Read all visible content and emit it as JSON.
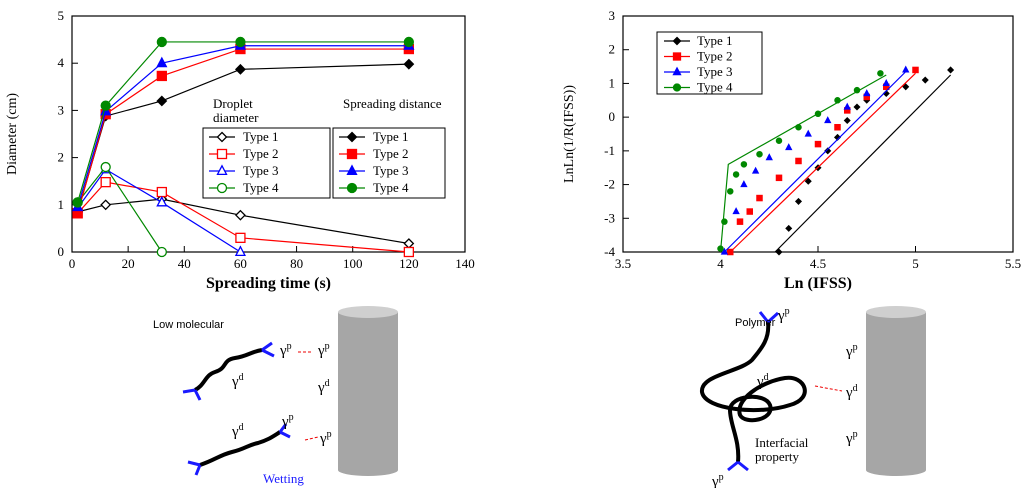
{
  "chart_data": [
    {
      "type": "line",
      "xlabel": "Spreading time (s)",
      "ylabel": "Diameter (cm)",
      "x": [
        2,
        12,
        32,
        60,
        120
      ],
      "xlim": [
        0,
        140
      ],
      "xticks": [
        0,
        20,
        40,
        60,
        80,
        100,
        120,
        140
      ],
      "ylim": [
        0,
        5
      ],
      "yticks": [
        0,
        1,
        2,
        3,
        4,
        5
      ],
      "legend_groups": [
        "Droplet diameter",
        "Spreading distance"
      ],
      "series": [
        {
          "name": "Type 1",
          "group": 0,
          "color": "#000000",
          "marker": "diamond",
          "filled": false,
          "values": [
            0.85,
            1.0,
            1.12,
            0.78,
            0.18
          ]
        },
        {
          "name": "Type 2",
          "group": 0,
          "color": "#ff0000",
          "marker": "square",
          "filled": false,
          "values": [
            0.82,
            1.48,
            1.27,
            0.3,
            0
          ]
        },
        {
          "name": "Type 3",
          "group": 0,
          "color": "#0000ff",
          "marker": "triangle",
          "filled": false,
          "values": [
            0.93,
            1.75,
            1.05,
            0,
            null
          ]
        },
        {
          "name": "Type 4",
          "group": 0,
          "color": "#008800",
          "marker": "circle",
          "filled": false,
          "values": [
            1.05,
            1.8,
            0,
            null,
            null
          ]
        },
        {
          "name": "Type 1",
          "group": 1,
          "color": "#000000",
          "marker": "diamond",
          "filled": true,
          "values": [
            0.85,
            2.88,
            3.2,
            3.87,
            3.98
          ]
        },
        {
          "name": "Type 2",
          "group": 1,
          "color": "#ff0000",
          "marker": "square",
          "filled": true,
          "values": [
            0.82,
            2.92,
            3.73,
            4.3,
            4.3
          ]
        },
        {
          "name": "Type 3",
          "group": 1,
          "color": "#0000ff",
          "marker": "triangle",
          "filled": true,
          "values": [
            0.95,
            2.98,
            4.0,
            4.37,
            4.37
          ]
        },
        {
          "name": "Type 4",
          "group": 1,
          "color": "#008800",
          "marker": "circle",
          "filled": true,
          "values": [
            1.05,
            3.1,
            4.45,
            4.45,
            4.45
          ]
        }
      ]
    },
    {
      "type": "scatter",
      "xlabel": "Ln (IFSS)",
      "ylabel": "LnLn(1/R(IFSS))",
      "xlim": [
        3.5,
        5.5
      ],
      "xticks": [
        3.5,
        4,
        4.5,
        5,
        5.5
      ],
      "ylim": [
        -4,
        3
      ],
      "yticks": [
        -4,
        -3,
        -2,
        -1,
        0,
        1,
        2,
        3
      ],
      "series": [
        {
          "name": "Type 1",
          "color": "#000000",
          "marker": "diamond",
          "x": [
            4.3,
            4.35,
            4.4,
            4.45,
            4.5,
            4.55,
            4.6,
            4.65,
            4.7,
            4.75,
            4.85,
            4.95,
            5.05,
            5.18
          ],
          "values": [
            -4,
            -3.3,
            -2.5,
            -1.9,
            -1.5,
            -1.0,
            -0.6,
            -0.1,
            0.3,
            0.5,
            0.7,
            0.9,
            1.1,
            1.4
          ],
          "fit": {
            "x": [
              4.28,
              5.18
            ],
            "values": [
              -4,
              1.25
            ]
          }
        },
        {
          "name": "Type 2",
          "color": "#ff0000",
          "marker": "square",
          "x": [
            4.05,
            4.1,
            4.15,
            4.2,
            4.3,
            4.4,
            4.5,
            4.6,
            4.65,
            4.75,
            4.85,
            5.0
          ],
          "values": [
            -4,
            -3.1,
            -2.8,
            -2.4,
            -1.8,
            -1.3,
            -0.8,
            -0.3,
            0.2,
            0.6,
            0.9,
            1.4
          ],
          "fit": {
            "x": [
              4.05,
              5.0
            ],
            "values": [
              -4,
              1.3
            ]
          }
        },
        {
          "name": "Type 3",
          "color": "#0000ff",
          "marker": "triangle",
          "x": [
            4.02,
            4.08,
            4.12,
            4.18,
            4.25,
            4.35,
            4.45,
            4.55,
            4.65,
            4.75,
            4.85,
            4.95
          ],
          "values": [
            -4,
            -2.8,
            -2.0,
            -1.6,
            -1.2,
            -0.9,
            -0.5,
            -0.1,
            0.3,
            0.7,
            1.0,
            1.4
          ],
          "fit": {
            "x": [
              4.02,
              4.95
            ],
            "values": [
              -4,
              1.35
            ]
          }
        },
        {
          "name": "Type 4",
          "color": "#008800",
          "marker": "circle",
          "x": [
            4.0,
            4.02,
            4.05,
            4.08,
            4.12,
            4.2,
            4.3,
            4.4,
            4.5,
            4.6,
            4.7,
            4.82
          ],
          "values": [
            -3.9,
            -3.1,
            -2.2,
            -1.7,
            -1.4,
            -1.1,
            -0.7,
            -0.3,
            0.1,
            0.5,
            0.8,
            1.3
          ],
          "fit": {
            "x": [
              4.0,
              4.04,
              4.85
            ],
            "values": [
              -4,
              -1.4,
              1.25
            ]
          }
        }
      ]
    }
  ],
  "diagrams": {
    "left": {
      "title": "Low molecular",
      "caption": "Wetting",
      "gammas": [
        {
          "symbol": "γ",
          "sup": "p"
        },
        {
          "symbol": "γ",
          "sup": "p"
        },
        {
          "symbol": "γ",
          "sup": "d"
        },
        {
          "symbol": "γ",
          "sup": "d"
        },
        {
          "symbol": "γ",
          "sup": "d"
        },
        {
          "symbol": "γ",
          "sup": "p"
        },
        {
          "symbol": "γ",
          "sup": "p"
        }
      ]
    },
    "right": {
      "title": "Polymer",
      "caption": "Interfacial property",
      "gammas": [
        {
          "symbol": "γ",
          "sup": "p"
        },
        {
          "symbol": "γ",
          "sup": "p"
        },
        {
          "symbol": "γ",
          "sup": "d"
        },
        {
          "symbol": "γ",
          "sup": "d"
        },
        {
          "symbol": "γ",
          "sup": "p"
        },
        {
          "symbol": "γ",
          "sup": "p"
        }
      ]
    }
  }
}
